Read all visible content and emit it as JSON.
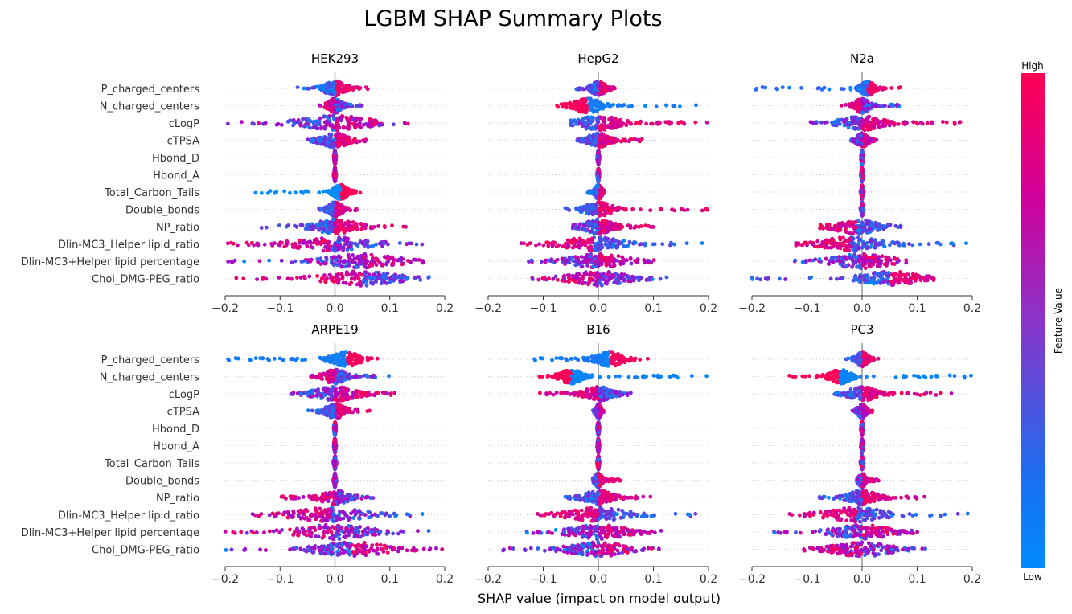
{
  "chart_data": {
    "type": "scatter",
    "subtype": "shap-beeswarm",
    "title": "LGBM SHAP Summary Plots",
    "xlabel": "SHAP value (impact on model output)",
    "xlim": [
      -0.2,
      0.2
    ],
    "xticks": [
      -0.2,
      -0.1,
      0.0,
      0.1,
      0.2
    ],
    "xtick_labels": [
      "−0.2",
      "−0.1",
      "0.0",
      "0.1",
      "0.2"
    ],
    "features": [
      "P_charged_centers",
      "N_charged_centers",
      "cLogP",
      "cTPSA",
      "Hbond_D",
      "Hbond_A",
      "Total_Carbon_Tails",
      "Double_bonds",
      "NP_ratio",
      "Dlin-MC3_Helper lipid_ratio",
      "Dlin-MC3+Helper lipid percentage",
      "Chol_DMG-PEG_ratio"
    ],
    "colorbar": {
      "label": "Feature Value",
      "high_label": "High",
      "low_label": "Low",
      "low_color": "#008bfb",
      "mid_color": "#b000c8",
      "high_color": "#ff0052"
    },
    "panels": [
      {
        "name": "HEK293",
        "features": [
          {
            "min": -0.07,
            "max": 0.06,
            "peak": 0.0,
            "spread": 0.015,
            "pos_color": "high",
            "sep": 0.7
          },
          {
            "min": -0.03,
            "max": 0.05,
            "peak": 0.0,
            "spread": 0.01,
            "pos_color": "low",
            "sep": 0.5
          },
          {
            "min": -0.2,
            "max": 0.15,
            "peak": 0.0,
            "spread": 0.05,
            "pos_color": "high",
            "sep": 0.3
          },
          {
            "min": -0.05,
            "max": 0.06,
            "peak": 0.0,
            "spread": 0.02,
            "pos_color": "high",
            "sep": 0.6
          },
          {
            "min": -0.002,
            "max": 0.002,
            "peak": 0.0,
            "spread": 0.001,
            "pos_color": "mixed",
            "sep": 0.0
          },
          {
            "min": -0.002,
            "max": 0.002,
            "peak": 0.0,
            "spread": 0.001,
            "pos_color": "mixed",
            "sep": 0.0
          },
          {
            "min": -0.15,
            "max": 0.05,
            "peak": 0.01,
            "spread": 0.01,
            "pos_color": "high",
            "sep": 1.0
          },
          {
            "min": -0.03,
            "max": 0.04,
            "peak": 0.0,
            "spread": 0.01,
            "pos_color": "high",
            "sep": 0.6
          },
          {
            "min": -0.14,
            "max": 0.13,
            "peak": 0.0,
            "spread": 0.03,
            "pos_color": "high",
            "sep": 0.6
          },
          {
            "min": -0.2,
            "max": 0.16,
            "peak": -0.01,
            "spread": 0.05,
            "pos_color": "low",
            "sep": 0.4
          },
          {
            "min": -0.2,
            "max": 0.16,
            "peak": 0.05,
            "spread": 0.05,
            "pos_color": "high",
            "sep": 0.3
          },
          {
            "min": -0.18,
            "max": 0.18,
            "peak": 0.05,
            "spread": 0.05,
            "pos_color": "low",
            "sep": 0.5
          }
        ]
      },
      {
        "name": "HepG2",
        "features": [
          {
            "min": -0.04,
            "max": 0.03,
            "peak": 0.0,
            "spread": 0.01,
            "pos_color": "high",
            "sep": 0.6
          },
          {
            "min": -0.08,
            "max": 0.19,
            "peak": -0.02,
            "spread": 0.02,
            "pos_color": "low",
            "sep": 0.9
          },
          {
            "min": -0.05,
            "max": 0.2,
            "peak": 0.0,
            "spread": 0.03,
            "pos_color": "high",
            "sep": 0.6
          },
          {
            "min": -0.04,
            "max": 0.08,
            "peak": 0.0,
            "spread": 0.015,
            "pos_color": "high",
            "sep": 0.6
          },
          {
            "min": -0.002,
            "max": 0.002,
            "peak": 0.0,
            "spread": 0.001,
            "pos_color": "mixed",
            "sep": 0.0
          },
          {
            "min": -0.002,
            "max": 0.002,
            "peak": 0.0,
            "spread": 0.001,
            "pos_color": "mixed",
            "sep": 0.0
          },
          {
            "min": -0.02,
            "max": 0.01,
            "peak": 0.0,
            "spread": 0.005,
            "pos_color": "high",
            "sep": 0.7
          },
          {
            "min": -0.06,
            "max": 0.2,
            "peak": 0.0,
            "spread": 0.02,
            "pos_color": "high",
            "sep": 0.7
          },
          {
            "min": -0.05,
            "max": 0.1,
            "peak": 0.0,
            "spread": 0.02,
            "pos_color": "high",
            "sep": 0.5
          },
          {
            "min": -0.14,
            "max": 0.2,
            "peak": -0.01,
            "spread": 0.04,
            "pos_color": "low",
            "sep": 0.6
          },
          {
            "min": -0.13,
            "max": 0.12,
            "peak": 0.0,
            "spread": 0.04,
            "pos_color": "high",
            "sep": 0.3
          },
          {
            "min": -0.12,
            "max": 0.13,
            "peak": 0.0,
            "spread": 0.04,
            "pos_color": "low",
            "sep": 0.3
          }
        ]
      },
      {
        "name": "N2a",
        "features": [
          {
            "min": -0.2,
            "max": 0.08,
            "peak": 0.01,
            "spread": 0.01,
            "pos_color": "high",
            "sep": 0.8
          },
          {
            "min": -0.04,
            "max": 0.09,
            "peak": 0.0,
            "spread": 0.01,
            "pos_color": "low",
            "sep": 0.5
          },
          {
            "min": -0.1,
            "max": 0.18,
            "peak": 0.0,
            "spread": 0.03,
            "pos_color": "high",
            "sep": 0.5
          },
          {
            "min": -0.02,
            "max": 0.03,
            "peak": 0.0,
            "spread": 0.008,
            "pos_color": "high",
            "sep": 0.4
          },
          {
            "min": -0.002,
            "max": 0.002,
            "peak": 0.0,
            "spread": 0.001,
            "pos_color": "mixed",
            "sep": 0.0
          },
          {
            "min": -0.002,
            "max": 0.002,
            "peak": 0.0,
            "spread": 0.001,
            "pos_color": "mixed",
            "sep": 0.0
          },
          {
            "min": -0.003,
            "max": 0.003,
            "peak": 0.0,
            "spread": 0.001,
            "pos_color": "low",
            "sep": 0.0
          },
          {
            "min": -0.003,
            "max": 0.003,
            "peak": 0.0,
            "spread": 0.001,
            "pos_color": "high",
            "sep": 0.0
          },
          {
            "min": -0.08,
            "max": 0.07,
            "peak": -0.01,
            "spread": 0.03,
            "pos_color": "low",
            "sep": 0.6
          },
          {
            "min": -0.12,
            "max": 0.2,
            "peak": -0.02,
            "spread": 0.04,
            "pos_color": "low",
            "sep": 0.6
          },
          {
            "min": -0.13,
            "max": 0.08,
            "peak": 0.0,
            "spread": 0.04,
            "pos_color": "high",
            "sep": 0.3
          },
          {
            "min": -0.2,
            "max": 0.13,
            "peak": 0.05,
            "spread": 0.04,
            "pos_color": "high",
            "sep": 0.6
          }
        ]
      },
      {
        "name": "ARPE19",
        "features": [
          {
            "min": -0.2,
            "max": 0.08,
            "peak": 0.02,
            "spread": 0.02,
            "pos_color": "high",
            "sep": 0.9
          },
          {
            "min": -0.05,
            "max": 0.1,
            "peak": 0.0,
            "spread": 0.015,
            "pos_color": "low",
            "sep": 0.5
          },
          {
            "min": -0.08,
            "max": 0.11,
            "peak": 0.0,
            "spread": 0.03,
            "pos_color": "high",
            "sep": 0.4
          },
          {
            "min": -0.05,
            "max": 0.07,
            "peak": 0.0,
            "spread": 0.015,
            "pos_color": "high",
            "sep": 0.6
          },
          {
            "min": -0.002,
            "max": 0.002,
            "peak": 0.0,
            "spread": 0.001,
            "pos_color": "mixed",
            "sep": 0.0
          },
          {
            "min": -0.002,
            "max": 0.002,
            "peak": 0.0,
            "spread": 0.001,
            "pos_color": "mixed",
            "sep": 0.0
          },
          {
            "min": -0.003,
            "max": 0.003,
            "peak": 0.0,
            "spread": 0.001,
            "pos_color": "low",
            "sep": 0.0
          },
          {
            "min": -0.003,
            "max": 0.003,
            "peak": 0.0,
            "spread": 0.001,
            "pos_color": "mixed",
            "sep": 0.0
          },
          {
            "min": -0.1,
            "max": 0.07,
            "peak": 0.0,
            "spread": 0.02,
            "pos_color": "low",
            "sep": 0.4
          },
          {
            "min": -0.15,
            "max": 0.17,
            "peak": -0.01,
            "spread": 0.05,
            "pos_color": "low",
            "sep": 0.4
          },
          {
            "min": -0.2,
            "max": 0.18,
            "peak": 0.0,
            "spread": 0.05,
            "pos_color": "low",
            "sep": 0.3
          },
          {
            "min": -0.2,
            "max": 0.2,
            "peak": 0.03,
            "spread": 0.05,
            "pos_color": "high",
            "sep": 0.4
          }
        ]
      },
      {
        "name": "B16",
        "features": [
          {
            "min": -0.12,
            "max": 0.1,
            "peak": 0.02,
            "spread": 0.02,
            "pos_color": "high",
            "sep": 0.9
          },
          {
            "min": -0.12,
            "max": 0.2,
            "peak": -0.05,
            "spread": 0.015,
            "pos_color": "low",
            "sep": 0.95
          },
          {
            "min": -0.11,
            "max": 0.06,
            "peak": 0.0,
            "spread": 0.02,
            "pos_color": "low",
            "sep": 0.5
          },
          {
            "min": -0.01,
            "max": 0.01,
            "peak": 0.0,
            "spread": 0.004,
            "pos_color": "high",
            "sep": 0.4
          },
          {
            "min": -0.002,
            "max": 0.002,
            "peak": 0.0,
            "spread": 0.001,
            "pos_color": "mixed",
            "sep": 0.0
          },
          {
            "min": -0.002,
            "max": 0.002,
            "peak": 0.0,
            "spread": 0.001,
            "pos_color": "mixed",
            "sep": 0.0
          },
          {
            "min": -0.002,
            "max": 0.002,
            "peak": 0.0,
            "spread": 0.001,
            "pos_color": "high",
            "sep": 0.0
          },
          {
            "min": -0.01,
            "max": 0.04,
            "peak": 0.0,
            "spread": 0.005,
            "pos_color": "high",
            "sep": 0.6
          },
          {
            "min": -0.06,
            "max": 0.1,
            "peak": 0.0,
            "spread": 0.02,
            "pos_color": "high",
            "sep": 0.6
          },
          {
            "min": -0.11,
            "max": 0.2,
            "peak": 0.0,
            "spread": 0.04,
            "pos_color": "low",
            "sep": 0.6
          },
          {
            "min": -0.13,
            "max": 0.12,
            "peak": 0.0,
            "spread": 0.04,
            "pos_color": "high",
            "sep": 0.3
          },
          {
            "min": -0.18,
            "max": 0.11,
            "peak": 0.0,
            "spread": 0.04,
            "pos_color": "high",
            "sep": 0.3
          }
        ]
      },
      {
        "name": "PC3",
        "features": [
          {
            "min": -0.03,
            "max": 0.03,
            "peak": 0.0,
            "spread": 0.008,
            "pos_color": "high",
            "sep": 0.7
          },
          {
            "min": -0.14,
            "max": 0.2,
            "peak": -0.04,
            "spread": 0.015,
            "pos_color": "low",
            "sep": 0.95
          },
          {
            "min": -0.05,
            "max": 0.18,
            "peak": 0.0,
            "spread": 0.02,
            "pos_color": "high",
            "sep": 0.6
          },
          {
            "min": -0.02,
            "max": 0.02,
            "peak": 0.0,
            "spread": 0.006,
            "pos_color": "high",
            "sep": 0.4
          },
          {
            "min": -0.002,
            "max": 0.002,
            "peak": 0.0,
            "spread": 0.001,
            "pos_color": "mixed",
            "sep": 0.0
          },
          {
            "min": -0.002,
            "max": 0.002,
            "peak": 0.0,
            "spread": 0.001,
            "pos_color": "mixed",
            "sep": 0.0
          },
          {
            "min": -0.003,
            "max": 0.003,
            "peak": 0.0,
            "spread": 0.001,
            "pos_color": "low",
            "sep": 0.0
          },
          {
            "min": -0.01,
            "max": 0.03,
            "peak": 0.0,
            "spread": 0.005,
            "pos_color": "high",
            "sep": 0.5
          },
          {
            "min": -0.08,
            "max": 0.12,
            "peak": 0.0,
            "spread": 0.02,
            "pos_color": "high",
            "sep": 0.6
          },
          {
            "min": -0.14,
            "max": 0.2,
            "peak": -0.01,
            "spread": 0.04,
            "pos_color": "low",
            "sep": 0.6
          },
          {
            "min": -0.16,
            "max": 0.1,
            "peak": 0.0,
            "spread": 0.04,
            "pos_color": "high",
            "sep": 0.3
          },
          {
            "min": -0.11,
            "max": 0.12,
            "peak": 0.0,
            "spread": 0.04,
            "pos_color": "low",
            "sep": 0.3
          }
        ]
      }
    ]
  }
}
